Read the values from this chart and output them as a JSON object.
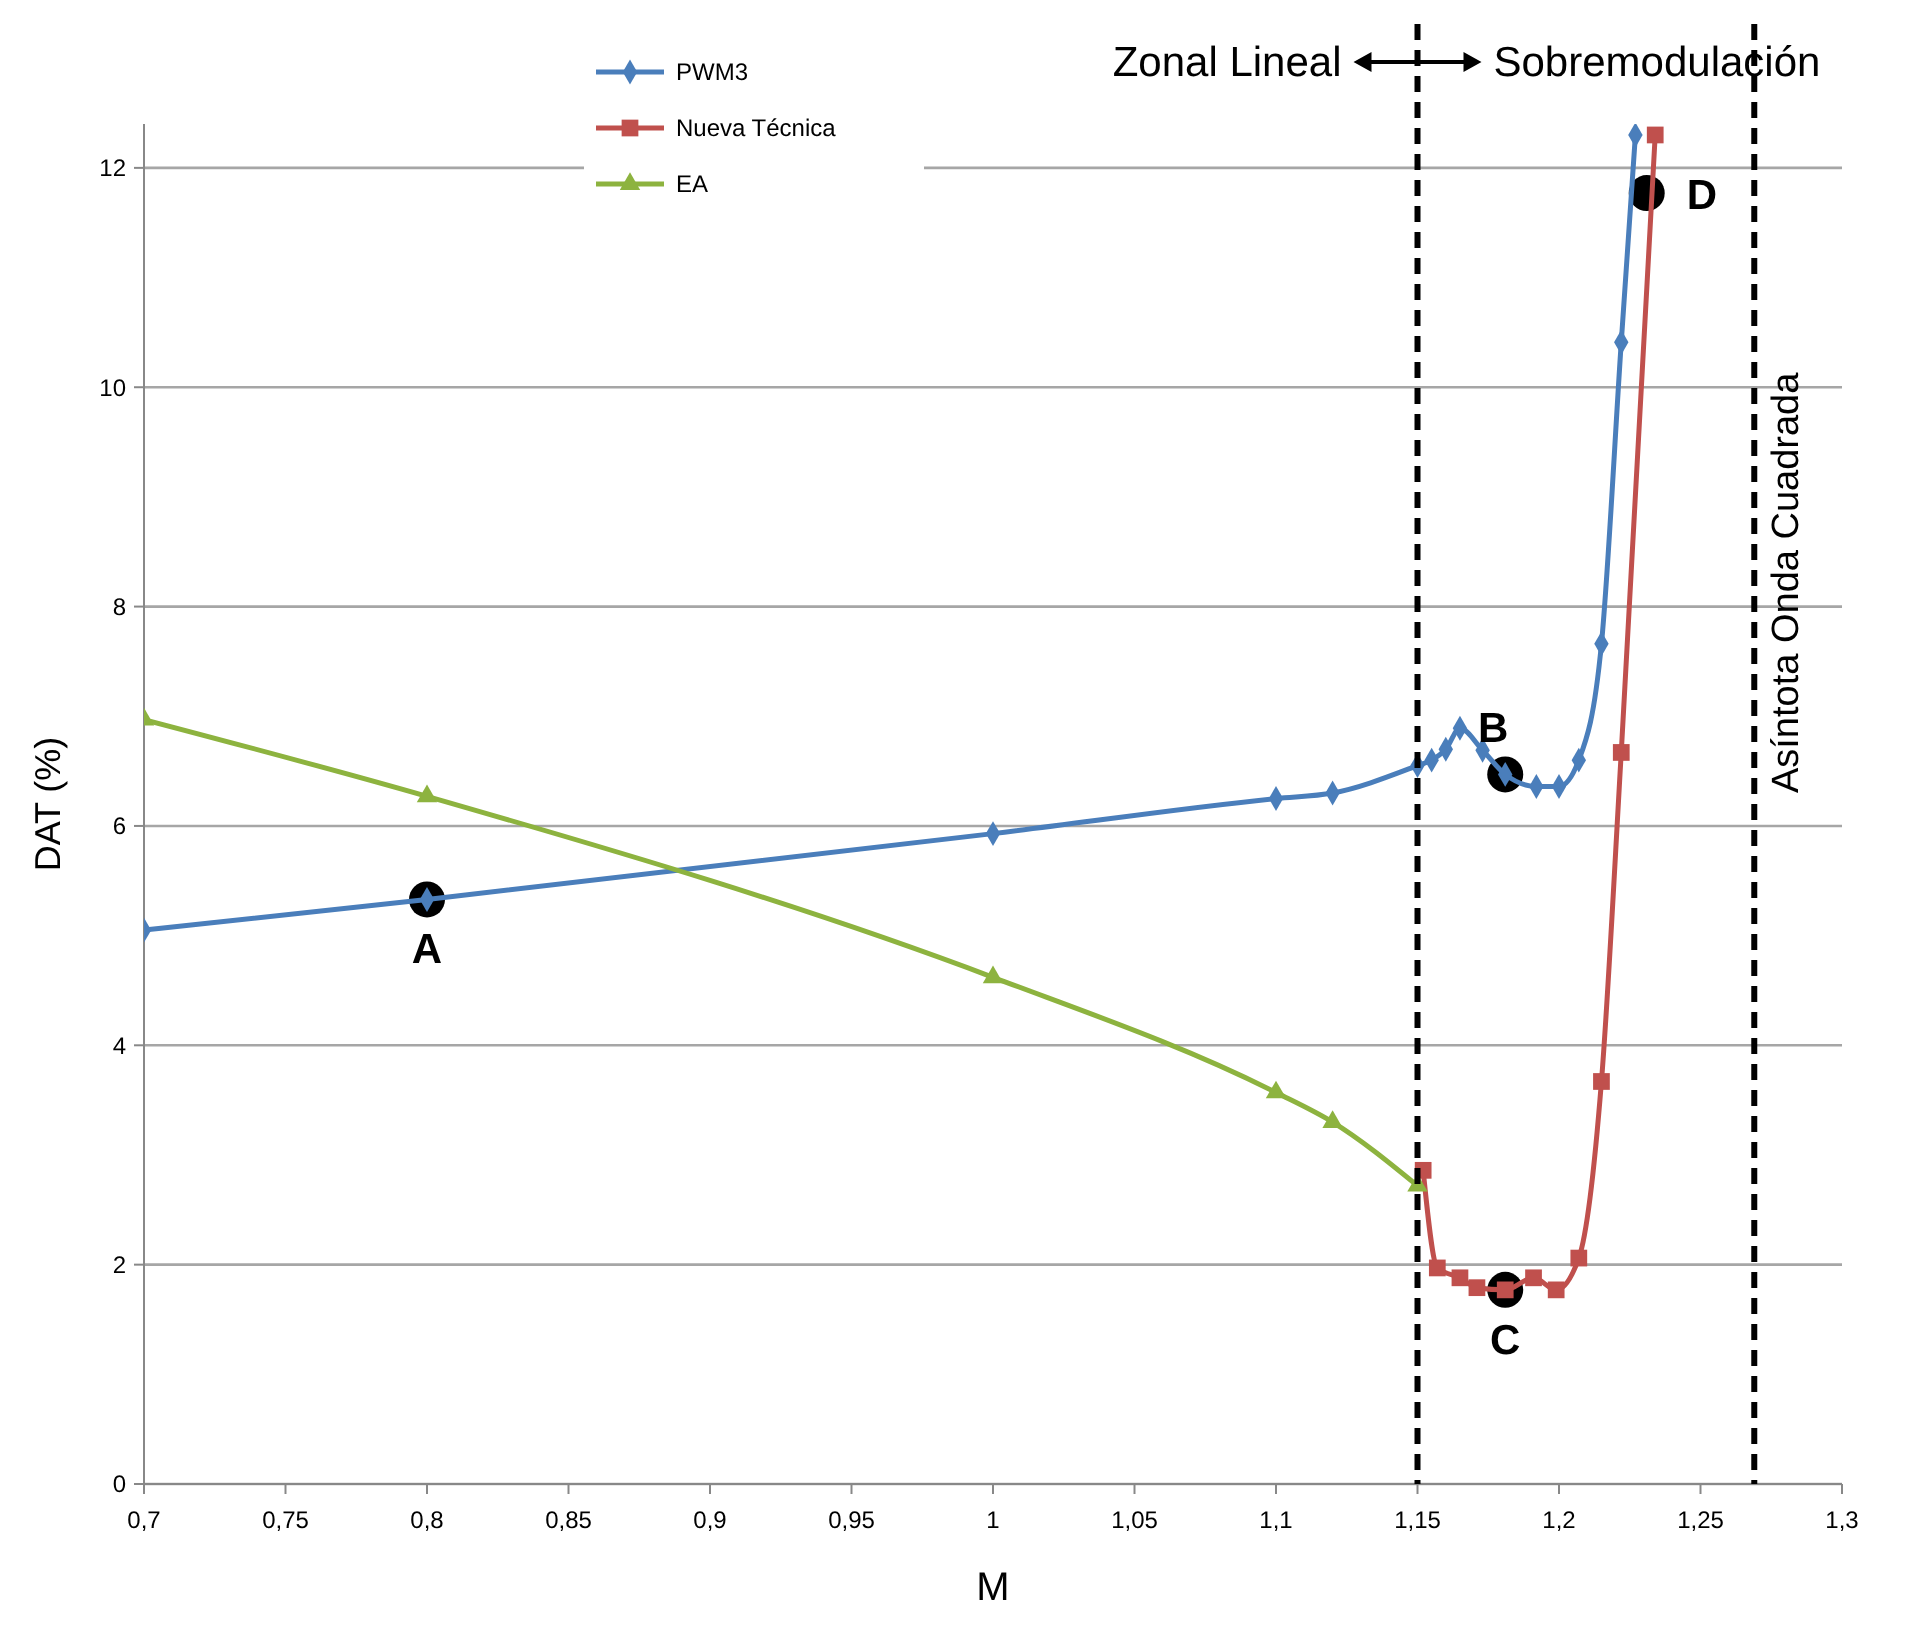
{
  "chart_data": {
    "type": "line",
    "xlabel": "M",
    "ylabel": "DAT (%)",
    "xlim": [
      0.7,
      1.3
    ],
    "ylim": [
      0,
      12.4
    ],
    "xticks": [
      {
        "value": 0.7,
        "label": "0,7"
      },
      {
        "value": 0.75,
        "label": "0,75"
      },
      {
        "value": 0.8,
        "label": "0,8"
      },
      {
        "value": 0.85,
        "label": "0,85"
      },
      {
        "value": 0.9,
        "label": "0,9"
      },
      {
        "value": 0.95,
        "label": "0,95"
      },
      1,
      {
        "value": 1.05,
        "label": "1,05"
      },
      {
        "value": 1.1,
        "label": "1,1"
      },
      {
        "value": 1.15,
        "label": "1,15"
      },
      {
        "value": 1.2,
        "label": "1,2"
      },
      {
        "value": 1.25,
        "label": "1,25"
      },
      {
        "value": 1.3,
        "label": "1,3"
      }
    ],
    "yticks": [
      0,
      2,
      4,
      6,
      8,
      10,
      12
    ],
    "grid": "y",
    "legend": "top",
    "line_style": "solid",
    "series": [
      {
        "name": "PWM3",
        "color": "#4a7ebb",
        "marker": "diamond",
        "x": [
          0.7,
          0.8,
          1.0,
          1.1,
          1.12,
          1.15,
          1.155,
          1.16,
          1.165,
          1.173,
          1.181,
          1.192,
          1.2,
          1.207,
          1.215,
          1.222,
          1.227
        ],
        "values": [
          5.05,
          5.33,
          5.93,
          6.25,
          6.3,
          6.55,
          6.6,
          6.7,
          6.89,
          6.69,
          6.47,
          6.36,
          6.36,
          6.6,
          7.66,
          10.41,
          12.3
        ]
      },
      {
        "name": "Nueva Técnica",
        "color": "#c0504d",
        "marker": "square",
        "x": [
          1.152,
          1.157,
          1.165,
          1.171,
          1.181,
          1.191,
          1.199,
          1.207,
          1.215,
          1.222,
          1.234
        ],
        "values": [
          2.86,
          1.97,
          1.88,
          1.79,
          1.77,
          1.88,
          1.77,
          2.06,
          3.67,
          6.67,
          12.3
        ]
      },
      {
        "name": "EA",
        "color": "#8db33f",
        "marker": "triangle",
        "x": [
          0.7,
          0.8,
          1.0,
          1.1,
          1.12,
          1.15
        ],
        "values": [
          6.97,
          6.27,
          4.62,
          3.57,
          3.3,
          2.72
        ]
      }
    ],
    "ref_lines": [
      {
        "axis": "x",
        "value": 1.15,
        "label": null,
        "color": "#000000",
        "line_style": "dashed"
      },
      {
        "axis": "x",
        "value": 1.269,
        "label": "Asíntota Onda Cuadrada",
        "color": "#000000",
        "line_style": "dashed"
      }
    ],
    "annotations": [
      "Zonal Lineal",
      "Sobremodulación",
      {
        "text": "A",
        "x": 0.8,
        "y": 5.33
      },
      {
        "text": "B",
        "x": 1.181,
        "y": 6.47
      },
      {
        "text": "C",
        "x": 1.181,
        "y": 1.77
      },
      {
        "text": "D",
        "x": 1.231,
        "y": 11.77
      }
    ]
  }
}
